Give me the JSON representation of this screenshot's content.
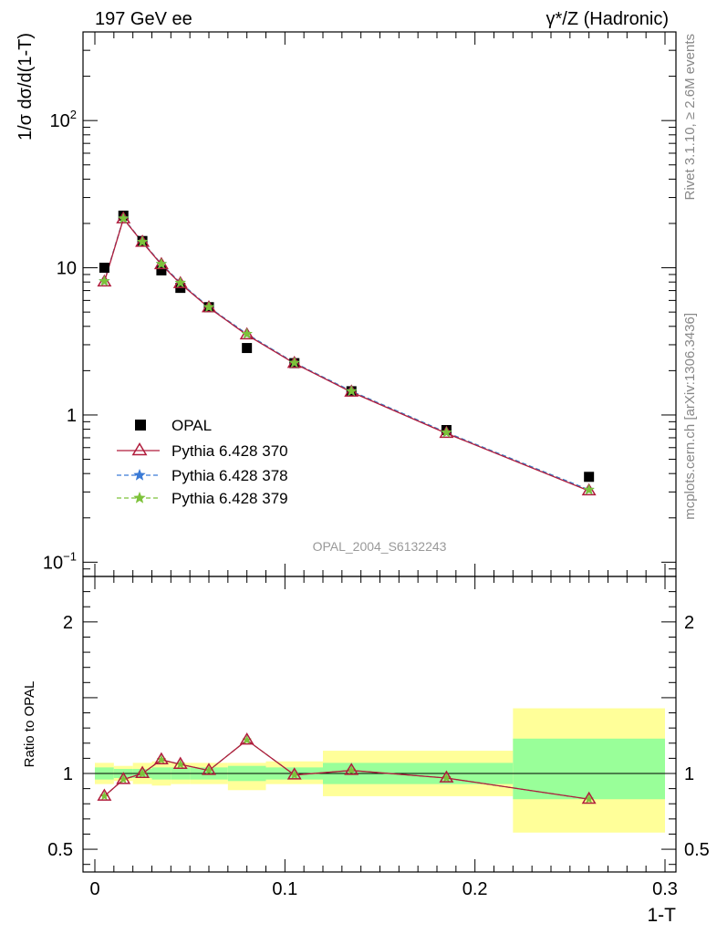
{
  "header": {
    "left_label": "197 GeV ee",
    "right_label": "γ*/Z (Hadronic)",
    "side_label_1": "Rivet 3.1.10, ≥ 2.6M events",
    "side_label_2": "mcplots.cern.ch [arXiv:1306.3436]",
    "analysis_label": "OPAL_2004_S6132243"
  },
  "chart_data": [
    {
      "type": "scatter",
      "panel": "main",
      "ylabel": "1/σ dσ/d(1-T)",
      "yscale": "log",
      "xlim": [
        0,
        0.3
      ],
      "ylim": [
        0.08,
        400
      ],
      "y_ticks": [
        {
          "value": 0.1,
          "base": "10",
          "exp": "−1"
        },
        {
          "value": 1,
          "base": "1",
          "exp": ""
        },
        {
          "value": 10,
          "base": "10",
          "exp": ""
        },
        {
          "value": 100,
          "base": "10",
          "exp": "2"
        }
      ],
      "x": [
        0.005,
        0.015,
        0.025,
        0.035,
        0.045,
        0.06,
        0.08,
        0.105,
        0.135,
        0.185,
        0.26
      ],
      "series": [
        {
          "name": "OPAL",
          "marker": "square",
          "color": "#000000",
          "values": [
            10.0,
            22.6,
            15.2,
            9.6,
            7.3,
            5.4,
            2.85,
            2.25,
            1.45,
            0.79,
            0.38
          ]
        },
        {
          "name": "Pythia 6.428 370",
          "marker": "triangle",
          "line": "solid",
          "color": "#b01c3c",
          "values": [
            8.0,
            21.5,
            14.9,
            10.5,
            7.8,
            5.35,
            3.5,
            2.24,
            1.43,
            0.75,
            0.305
          ]
        },
        {
          "name": "Pythia 6.428 378",
          "marker": "star",
          "line": "dashed",
          "color": "#3a7ad6",
          "values": [
            8.1,
            21.6,
            15.0,
            10.6,
            7.9,
            5.4,
            3.55,
            2.26,
            1.45,
            0.76,
            0.31
          ]
        },
        {
          "name": "Pythia 6.428 379",
          "marker": "star",
          "line": "dashed",
          "color": "#7dc23a",
          "values": [
            8.1,
            21.6,
            15.0,
            10.6,
            7.9,
            5.4,
            3.55,
            2.26,
            1.45,
            0.76,
            0.31
          ]
        }
      ],
      "legend": "left-middle"
    },
    {
      "type": "line",
      "panel": "ratio",
      "ylabel": "Ratio to OPAL",
      "xlabel": "1-T",
      "ylim": [
        0.35,
        2.3
      ],
      "y_ticks": [
        {
          "value": 0.5,
          "label": "0.5"
        },
        {
          "value": 1,
          "label": "1"
        },
        {
          "value": 2,
          "label": "2"
        }
      ],
      "x_ticks": [
        {
          "value": 0,
          "label": "0"
        },
        {
          "value": 0.1,
          "label": "0.1"
        },
        {
          "value": 0.2,
          "label": "0.2"
        },
        {
          "value": 0.3,
          "label": "0.3"
        }
      ],
      "bands": [
        {
          "xlo": 0.0,
          "xhi": 0.01,
          "stat_lo": 0.96,
          "stat_hi": 1.04,
          "tot_lo": 0.93,
          "tot_hi": 1.07
        },
        {
          "xlo": 0.01,
          "xhi": 0.02,
          "stat_lo": 0.97,
          "stat_hi": 1.03,
          "tot_lo": 0.95,
          "tot_hi": 1.05
        },
        {
          "xlo": 0.02,
          "xhi": 0.03,
          "stat_lo": 0.97,
          "stat_hi": 1.03,
          "tot_lo": 0.93,
          "tot_hi": 1.07
        },
        {
          "xlo": 0.03,
          "xhi": 0.04,
          "stat_lo": 0.96,
          "stat_hi": 1.04,
          "tot_lo": 0.92,
          "tot_hi": 1.08
        },
        {
          "xlo": 0.04,
          "xhi": 0.05,
          "stat_lo": 0.96,
          "stat_hi": 1.04,
          "tot_lo": 0.93,
          "tot_hi": 1.07
        },
        {
          "xlo": 0.05,
          "xhi": 0.07,
          "stat_lo": 0.96,
          "stat_hi": 1.04,
          "tot_lo": 0.93,
          "tot_hi": 1.07
        },
        {
          "xlo": 0.07,
          "xhi": 0.09,
          "stat_lo": 0.95,
          "stat_hi": 1.05,
          "tot_lo": 0.89,
          "tot_hi": 1.07
        },
        {
          "xlo": 0.09,
          "xhi": 0.12,
          "stat_lo": 0.96,
          "stat_hi": 1.04,
          "tot_lo": 0.93,
          "tot_hi": 1.08
        },
        {
          "xlo": 0.12,
          "xhi": 0.15,
          "stat_lo": 0.93,
          "stat_hi": 1.07,
          "tot_lo": 0.85,
          "tot_hi": 1.15
        },
        {
          "xlo": 0.15,
          "xhi": 0.22,
          "stat_lo": 0.93,
          "stat_hi": 1.07,
          "tot_lo": 0.85,
          "tot_hi": 1.15
        },
        {
          "xlo": 0.22,
          "xhi": 0.3,
          "stat_lo": 0.83,
          "stat_hi": 1.23,
          "tot_lo": 0.61,
          "tot_hi": 1.43
        }
      ],
      "ratio": [
        0.85,
        0.96,
        1.0,
        1.09,
        1.06,
        1.02,
        1.22,
        0.99,
        1.02,
        0.97,
        0.83
      ]
    }
  ],
  "colors": {
    "stat_band": "#99ff99",
    "total_band": "#ffff99"
  }
}
